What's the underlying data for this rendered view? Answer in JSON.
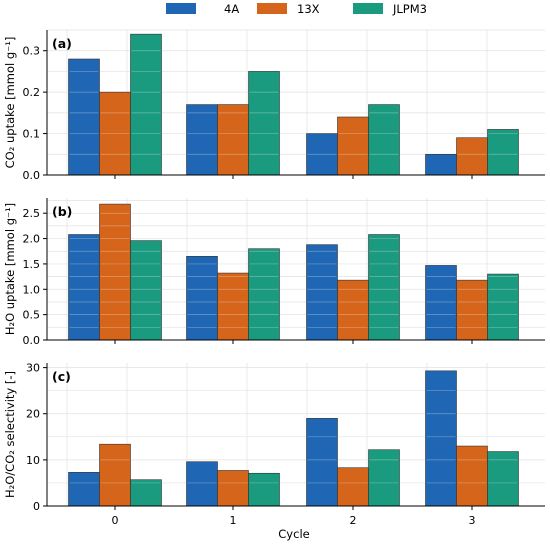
{
  "legend": [
    "4A",
    "13X",
    "JLPM3"
  ],
  "colors": {
    "4A": "#1f67b4",
    "13X": "#d5651a",
    "JLPM3": "#1a9a7e"
  },
  "chart_data": [
    {
      "type": "bar",
      "panel_label": "(a)",
      "ylabel": "CO₂ uptake [mmol g⁻¹]",
      "categories": [
        "0",
        "1",
        "2",
        "3"
      ],
      "series": [
        {
          "name": "4A",
          "values": [
            0.28,
            0.17,
            0.1,
            0.05
          ]
        },
        {
          "name": "13X",
          "values": [
            0.2,
            0.17,
            0.14,
            0.09
          ]
        },
        {
          "name": "JLPM3",
          "values": [
            0.34,
            0.25,
            0.17,
            0.11
          ]
        }
      ],
      "ylim": [
        0,
        0.35
      ],
      "yticks": [
        0.0,
        0.1,
        0.2,
        0.3
      ],
      "ytick_labels": [
        "0.0",
        "0.1",
        "0.2",
        "0.3"
      ],
      "grid": true
    },
    {
      "type": "bar",
      "panel_label": "(b)",
      "ylabel": "H₂O uptake [mmol g⁻¹]",
      "categories": [
        "0",
        "1",
        "2",
        "3"
      ],
      "series": [
        {
          "name": "4A",
          "values": [
            2.08,
            1.65,
            1.88,
            1.47
          ]
        },
        {
          "name": "13X",
          "values": [
            2.68,
            1.32,
            1.18,
            1.18
          ]
        },
        {
          "name": "JLPM3",
          "values": [
            1.96,
            1.8,
            2.08,
            1.3
          ]
        }
      ],
      "ylim": [
        0,
        2.8
      ],
      "yticks": [
        0.0,
        0.5,
        1.0,
        1.5,
        2.0,
        2.5
      ],
      "ytick_labels": [
        "0.0",
        "0.5",
        "1.0",
        "1.5",
        "2.0",
        "2.5"
      ],
      "grid": true
    },
    {
      "type": "bar",
      "panel_label": "(c)",
      "ylabel": "H₂O/CO₂ selectivity [-]",
      "xlabel": "Cycle",
      "categories": [
        "0",
        "1",
        "2",
        "3"
      ],
      "series": [
        {
          "name": "4A",
          "values": [
            7.3,
            9.6,
            19.0,
            29.3
          ]
        },
        {
          "name": "13X",
          "values": [
            13.4,
            7.7,
            8.3,
            13.0
          ]
        },
        {
          "name": "JLPM3",
          "values": [
            5.7,
            7.1,
            12.2,
            11.8
          ]
        }
      ],
      "ylim": [
        0,
        31
      ],
      "yticks": [
        0,
        10,
        20,
        30
      ],
      "ytick_labels": [
        "0",
        "10",
        "20",
        "30"
      ],
      "grid": true
    }
  ]
}
